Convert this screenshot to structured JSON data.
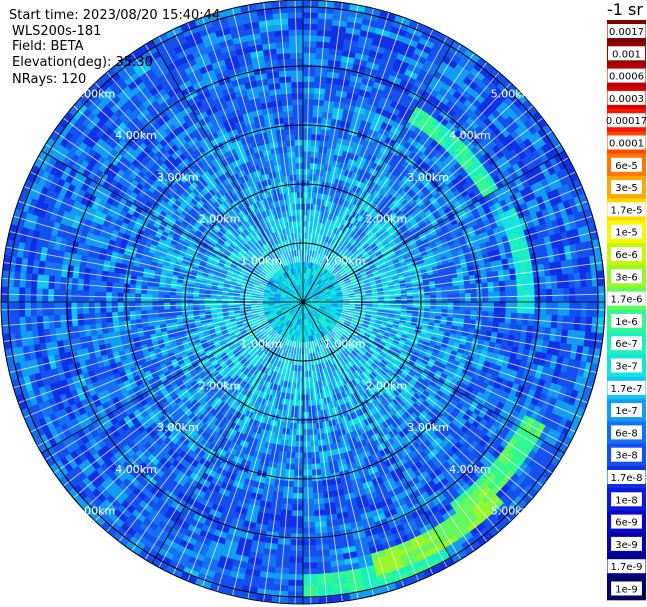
{
  "header": {
    "start_time": "Start time: 2023/08/20 15:40:44",
    "instrument": "WLS200s-181",
    "field": "Field: BETA",
    "elevation": "Elevation(deg): 35.30",
    "nrays": "NRays: 120"
  },
  "colorbar": {
    "title": "-1 sr",
    "levels": [
      {
        "label": "0.0017",
        "color": "#7a0000",
        "text_color": "#ffffff"
      },
      {
        "label": "0.001",
        "color": "#980000",
        "text_color": "#ffffff"
      },
      {
        "label": "0.0006",
        "color": "#b80000",
        "text_color": "#ffffff"
      },
      {
        "label": "0.0003",
        "color": "#da0000",
        "text_color": "#ffffff"
      },
      {
        "label": "0.00017",
        "color": "#ff1400",
        "text_color": "#ffffff"
      },
      {
        "label": "0.0001",
        "color": "#ff4800",
        "text_color": "#ffffff"
      },
      {
        "label": "6e-5",
        "color": "#ff7800",
        "text_color": "#000000"
      },
      {
        "label": "3e-5",
        "color": "#ffa800",
        "text_color": "#000000"
      },
      {
        "label": "1.7e-5",
        "color": "#ffd800",
        "text_color": "#000000"
      },
      {
        "label": "1e-5",
        "color": "#f8f800",
        "text_color": "#000000"
      },
      {
        "label": "6e-6",
        "color": "#c6f800",
        "text_color": "#000000"
      },
      {
        "label": "3e-6",
        "color": "#94f82a",
        "text_color": "#000000"
      },
      {
        "label": "1.7e-6",
        "color": "#62f85e",
        "text_color": "#000000"
      },
      {
        "label": "1e-6",
        "color": "#32f890",
        "text_color": "#000000"
      },
      {
        "label": "6e-7",
        "color": "#1af0bc",
        "text_color": "#000000"
      },
      {
        "label": "3e-7",
        "color": "#12e4e0",
        "text_color": "#000000"
      },
      {
        "label": "1.7e-7",
        "color": "#12c4f0",
        "text_color": "#000000"
      },
      {
        "label": "1e-7",
        "color": "#129cf4",
        "text_color": "#000000"
      },
      {
        "label": "6e-8",
        "color": "#1470f4",
        "text_color": "#000000"
      },
      {
        "label": "3e-8",
        "color": "#1450f0",
        "text_color": "#000000"
      },
      {
        "label": "1.7e-8",
        "color": "#1030e8",
        "text_color": "#000000"
      },
      {
        "label": "1e-8",
        "color": "#0c18dc",
        "text_color": "#ffffff"
      },
      {
        "label": "6e-9",
        "color": "#0806c8",
        "text_color": "#ffffff"
      },
      {
        "label": "3e-9",
        "color": "#0600a8",
        "text_color": "#ffffff"
      },
      {
        "label": "1.7e-9",
        "color": "#040084",
        "text_color": "#ffffff"
      },
      {
        "label": "1e-9",
        "color": "#020060",
        "text_color": "#ffffff"
      }
    ]
  },
  "chart_data": {
    "type": "heatmap",
    "projection": "polar (PPI scan)",
    "field": "BETA",
    "nrays": 120,
    "radial_unit": "km",
    "range_rings_km": [
      1.0,
      2.0,
      3.0,
      4.0,
      5.0
    ],
    "range_ring_labels": [
      "1.00km",
      "2.00km",
      "3.00km",
      "4.00km",
      "5.00km"
    ],
    "azimuth_spokes_deg": [
      0,
      30,
      60,
      90,
      120,
      150,
      180,
      210,
      240,
      270,
      300,
      330
    ],
    "max_range_km": 5.7,
    "log_scale": true,
    "typical_value_by_range": [
      {
        "range_km": 0.5,
        "value": 3e-07
      },
      {
        "range_km": 1.5,
        "value": 1.7e-07
      },
      {
        "range_km": 2.5,
        "value": 1e-07
      },
      {
        "range_km": 3.5,
        "value": 6e-08
      },
      {
        "range_km": 4.5,
        "value": 6e-08
      },
      {
        "range_km": 5.5,
        "value": 6e-08
      }
    ],
    "features": [
      {
        "azimuth_deg": 130,
        "range_km": 4.4,
        "value": 1.7e-06
      },
      {
        "azimuth_deg": 150,
        "range_km": 4.6,
        "value": 3e-06
      },
      {
        "azimuth_deg": 165,
        "range_km": 4.8,
        "value": 1e-06
      },
      {
        "azimuth_deg": 45,
        "range_km": 3.7,
        "value": 1e-06
      },
      {
        "azimuth_deg": 80,
        "range_km": 3.8,
        "value": 6e-07
      }
    ]
  }
}
